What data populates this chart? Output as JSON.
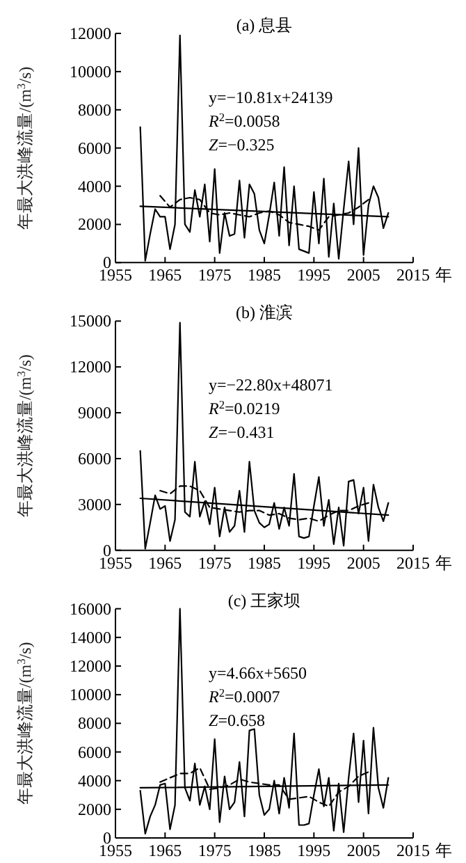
{
  "chart_data": [
    {
      "type": "line",
      "title": "(a) 息县",
      "xlabel": "年",
      "ylabel": "年最大洪峰流量/(m$^{3}$/s)",
      "xlim": [
        1955,
        2015
      ],
      "xticks": [
        1955,
        1965,
        1975,
        1985,
        1995,
        2005,
        2015
      ],
      "ylim": [
        0,
        12000
      ],
      "yticks": [
        0,
        2000,
        4000,
        6000,
        8000,
        10000,
        12000
      ],
      "grid": false,
      "marker": "none",
      "annotations": [
        "y=−10.81x+24139",
        "*R*$^{2}$=0.0058",
        "*Z*=−0.325"
      ],
      "series": [
        {
          "color": "#000000",
          "line_style": "solid",
          "x": [
            1960,
            1961,
            1962,
            1963,
            1964,
            1965,
            1966,
            1967,
            1968,
            1969,
            1970,
            1971,
            1972,
            1973,
            1974,
            1975,
            1976,
            1977,
            1978,
            1979,
            1980,
            1981,
            1982,
            1983,
            1984,
            1985,
            1986,
            1987,
            1988,
            1989,
            1990,
            1991,
            1992,
            1993,
            1994,
            1995,
            1996,
            1997,
            1998,
            1999,
            2000,
            2001,
            2002,
            2003,
            2004,
            2005,
            2006,
            2007,
            2008,
            2009,
            2010
          ],
          "values": [
            7100,
            100,
            1500,
            2800,
            2400,
            2400,
            700,
            2000,
            11900,
            2000,
            1600,
            3800,
            2400,
            4100,
            1100,
            4900,
            500,
            2600,
            1400,
            1500,
            4300,
            1300,
            4100,
            3600,
            1700,
            1000,
            2500,
            4200,
            1400,
            5000,
            900,
            4000,
            700,
            600,
            500,
            3700,
            1000,
            4400,
            300,
            3100,
            200,
            2800,
            5300,
            2000,
            6000,
            400,
            3000,
            4000,
            3400,
            1800,
            2600
          ]
        },
        {
          "color": "#000000",
          "line_style": "dashed",
          "x": [
            1964,
            1966,
            1968,
            1970,
            1972,
            1974,
            1976,
            1978,
            1980,
            1982,
            1984,
            1986,
            1988,
            1990,
            1992,
            1994,
            1996,
            1998,
            2000,
            2002,
            2004,
            2006
          ],
          "values": [
            3500,
            2900,
            3300,
            3400,
            3300,
            2600,
            2500,
            2600,
            2500,
            2400,
            2600,
            2700,
            2500,
            2100,
            2000,
            1900,
            1700,
            2400,
            2500,
            2600,
            2900,
            3300
          ]
        },
        {
          "color": "#000000",
          "line_style": "solid",
          "x": [
            1960,
            2010
          ],
          "values": [
            2950,
            2400
          ]
        }
      ]
    },
    {
      "type": "line",
      "title": "(b) 淮滨",
      "xlabel": "年",
      "ylabel": "年最大洪峰流量/(m$^{3}$/s)",
      "xlim": [
        1955,
        2015
      ],
      "xticks": [
        1955,
        1965,
        1975,
        1985,
        1995,
        2005,
        2015
      ],
      "ylim": [
        0,
        15000
      ],
      "yticks": [
        0,
        3000,
        6000,
        9000,
        12000,
        15000
      ],
      "grid": false,
      "marker": "none",
      "annotations": [
        "y=−22.80x+48071",
        "*R*$^{2}$=0.0219",
        "*Z*=−0.431"
      ],
      "series": [
        {
          "color": "#000000",
          "line_style": "solid",
          "x": [
            1960,
            1961,
            1962,
            1963,
            1964,
            1965,
            1966,
            1967,
            1968,
            1969,
            1970,
            1971,
            1972,
            1973,
            1974,
            1975,
            1976,
            1977,
            1978,
            1979,
            1980,
            1981,
            1982,
            1983,
            1984,
            1985,
            1986,
            1987,
            1988,
            1989,
            1990,
            1991,
            1992,
            1993,
            1994,
            1995,
            1996,
            1997,
            1998,
            1999,
            2000,
            2001,
            2002,
            2003,
            2004,
            2005,
            2006,
            2007,
            2008,
            2009,
            2010
          ],
          "values": [
            6500,
            100,
            1800,
            3600,
            2700,
            2900,
            600,
            2000,
            14900,
            2500,
            2200,
            5800,
            2200,
            3200,
            1700,
            4100,
            900,
            2800,
            1200,
            1600,
            3900,
            1200,
            5800,
            2600,
            1800,
            1500,
            1700,
            3100,
            1400,
            2800,
            1600,
            5000,
            900,
            800,
            900,
            2900,
            4800,
            1600,
            3300,
            400,
            2800,
            300,
            4500,
            4600,
            2400,
            4100,
            600,
            4300,
            2800,
            1900,
            3100
          ]
        },
        {
          "color": "#000000",
          "line_style": "dashed",
          "x": [
            1964,
            1966,
            1968,
            1970,
            1972,
            1974,
            1976,
            1978,
            1980,
            1982,
            1984,
            1986,
            1988,
            1990,
            1992,
            1994,
            1996,
            1998,
            2000,
            2002,
            2004,
            2006
          ],
          "values": [
            3900,
            3700,
            4200,
            4200,
            3900,
            2800,
            2700,
            2600,
            2500,
            2600,
            2600,
            2300,
            2400,
            2100,
            2000,
            2100,
            1900,
            2300,
            2600,
            2600,
            2900,
            3100
          ]
        },
        {
          "color": "#000000",
          "line_style": "solid",
          "x": [
            1960,
            2010
          ],
          "values": [
            3400,
            2300
          ]
        }
      ]
    },
    {
      "type": "line",
      "title": "(c) 王家坝",
      "xlabel": "年",
      "ylabel": "年最大洪峰流量/(m$^{3}$/s)",
      "xlim": [
        1955,
        2015
      ],
      "xticks": [
        1955,
        1965,
        1975,
        1985,
        1995,
        2005,
        2015
      ],
      "ylim": [
        0,
        16000
      ],
      "yticks": [
        0,
        2000,
        4000,
        6000,
        8000,
        10000,
        12000,
        14000,
        16000
      ],
      "grid": false,
      "marker": "none",
      "annotations": [
        "y=4.66x+5650",
        "*R*$^{2}$=0.0007",
        "*Z*=0.658"
      ],
      "series": [
        {
          "color": "#000000",
          "line_style": "solid",
          "x": [
            1960,
            1961,
            1962,
            1963,
            1964,
            1965,
            1966,
            1967,
            1968,
            1969,
            1970,
            1971,
            1972,
            1973,
            1974,
            1975,
            1976,
            1977,
            1978,
            1979,
            1980,
            1981,
            1982,
            1983,
            1984,
            1985,
            1986,
            1987,
            1988,
            1989,
            1990,
            1991,
            1992,
            1993,
            1994,
            1995,
            1996,
            1997,
            1998,
            1999,
            2000,
            2001,
            2002,
            2003,
            2004,
            2005,
            2006,
            2007,
            2008,
            2009,
            2010
          ],
          "values": [
            3300,
            300,
            1500,
            2300,
            3700,
            3800,
            600,
            2300,
            16000,
            3500,
            2600,
            5200,
            2300,
            3600,
            2000,
            6900,
            1100,
            4300,
            2000,
            2500,
            5300,
            1500,
            7500,
            7600,
            3000,
            1600,
            2000,
            4000,
            1700,
            4200,
            2100,
            7300,
            900,
            900,
            1000,
            3000,
            4800,
            2200,
            4200,
            500,
            3800,
            400,
            4200,
            7300,
            2500,
            6800,
            1700,
            7700,
            3500,
            2100,
            4200
          ]
        },
        {
          "color": "#000000",
          "line_style": "dashed",
          "x": [
            1964,
            1966,
            1968,
            1970,
            1972,
            1974,
            1976,
            1978,
            1980,
            1982,
            1984,
            1986,
            1988,
            1990,
            1992,
            1994,
            1996,
            1998,
            2000,
            2002,
            2004,
            2006
          ],
          "values": [
            3900,
            4200,
            4500,
            4500,
            4900,
            3400,
            3500,
            3700,
            4100,
            3900,
            3800,
            3700,
            3700,
            2700,
            2800,
            2900,
            2500,
            2200,
            3200,
            3600,
            4300,
            4600
          ]
        },
        {
          "color": "#000000",
          "line_style": "solid",
          "x": [
            1960,
            2010
          ],
          "values": [
            3500,
            3700
          ]
        }
      ]
    }
  ]
}
